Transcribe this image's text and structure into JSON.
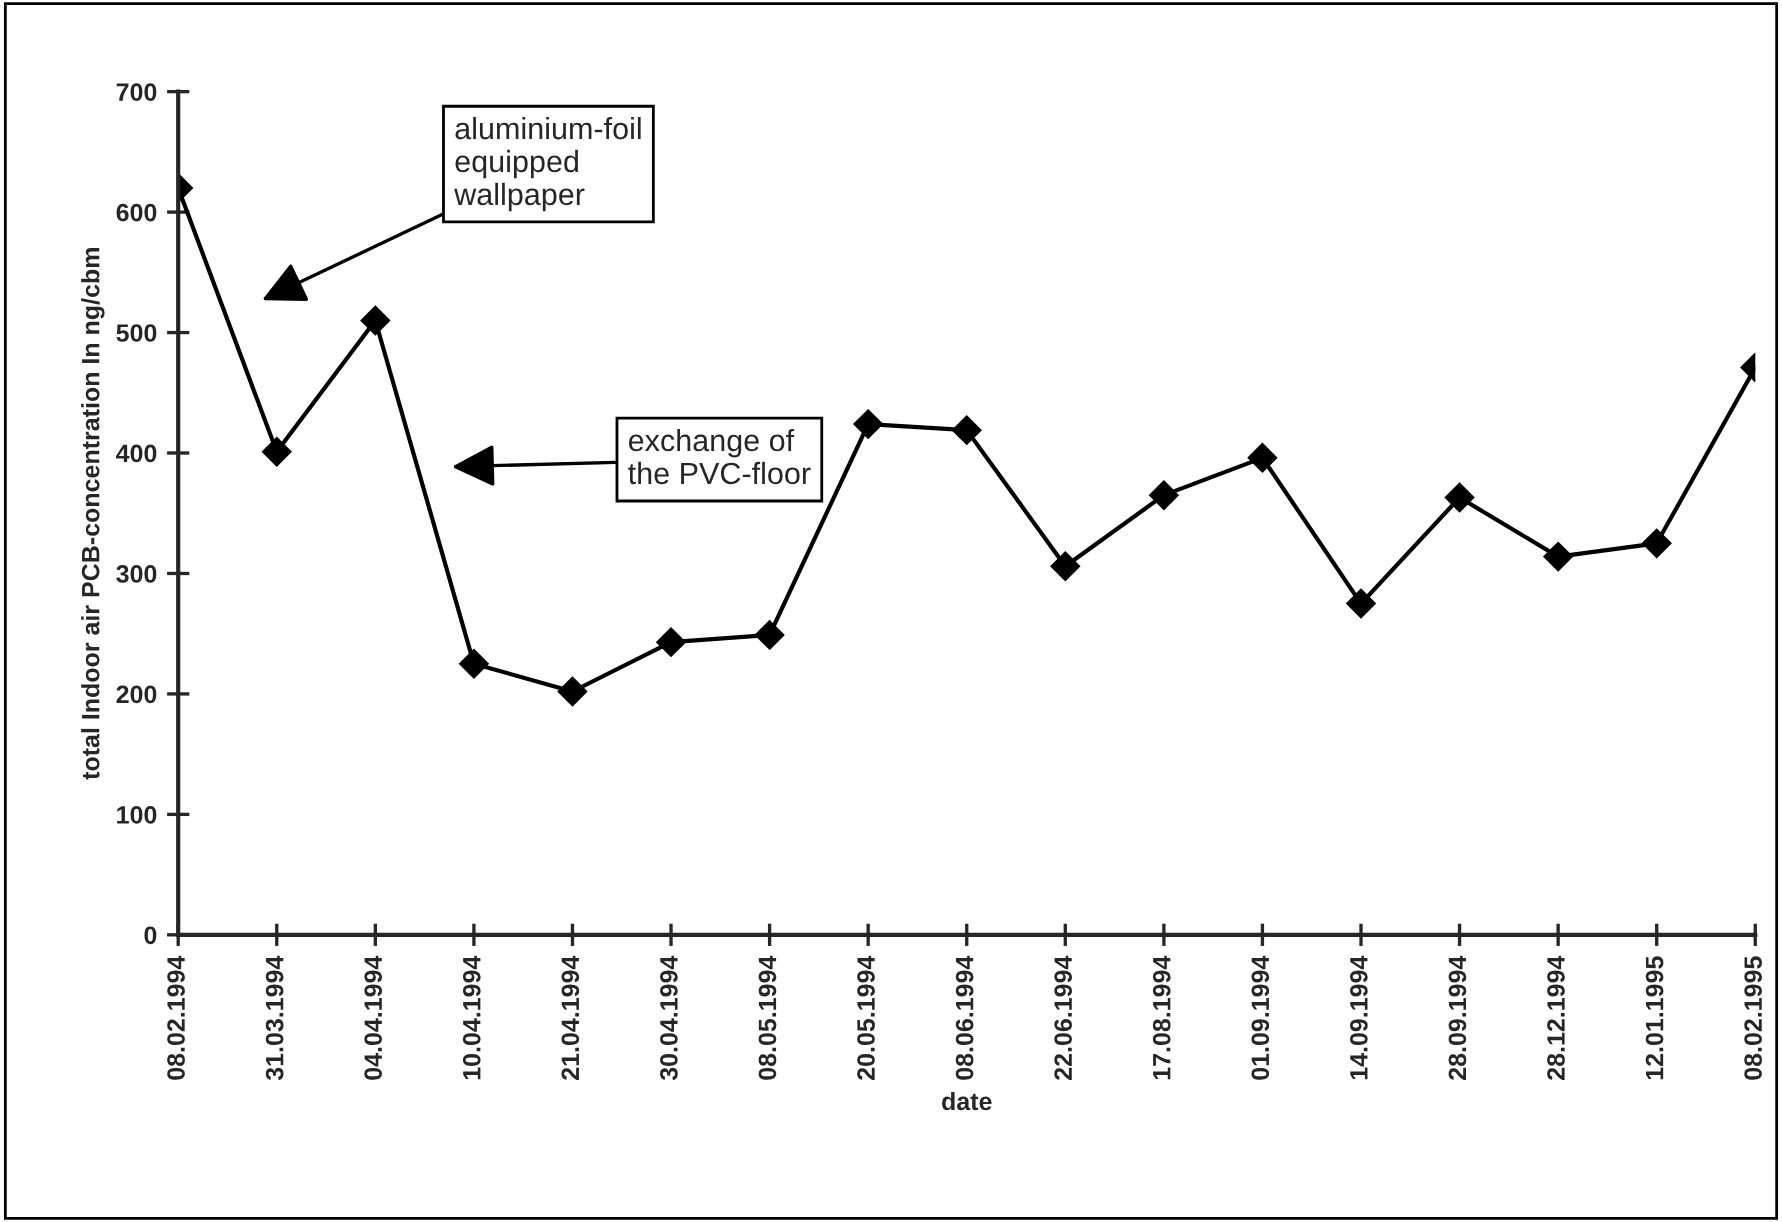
{
  "chart_data": {
    "type": "line",
    "xlabel": "date",
    "ylabel": "total Indoor air PCB-concentration In ng/cbm",
    "categories": [
      "08.02.1994",
      "31.03.1994",
      "04.04.1994",
      "10.04.1994",
      "21.04.1994",
      "30.04.1994",
      "08.05.1994",
      "20.05.1994",
      "08.06.1994",
      "22.06.1994",
      "17.08.1994",
      "01.09.1994",
      "14.09.1994",
      "28.09.1994",
      "28.12.1994",
      "12.01.1995",
      "08.02.1995"
    ],
    "series": [
      {
        "color": "#000000",
        "values": [
          620,
          401,
          510,
          225,
          202,
          243,
          249,
          424,
          419,
          306,
          365,
          396,
          275,
          363,
          314,
          325,
          471
        ]
      }
    ],
    "ylim": [
      0,
      700
    ],
    "yticks": [
      0,
      100,
      200,
      300,
      400,
      500,
      600,
      700
    ],
    "marker": "diamond",
    "line_style": "solid",
    "grid": false,
    "legend": false,
    "annotations": [
      "aluminium-foil\nequipped\nwallpaper",
      "exchange of\nthe PVC-floor"
    ]
  }
}
